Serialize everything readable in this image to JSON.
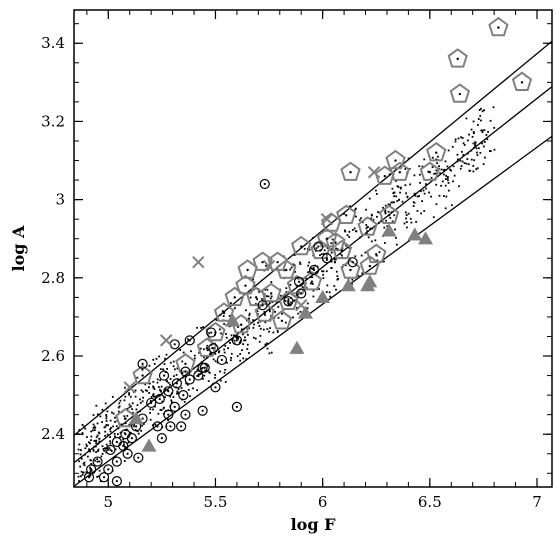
{
  "chart_data": {
    "type": "scatter",
    "title": "",
    "xlabel": "log F",
    "ylabel": "log A",
    "xlim": [
      4.84,
      7.07
    ],
    "ylim": [
      2.265,
      3.485
    ],
    "xticks": [
      5,
      5.5,
      6,
      6.5,
      7
    ],
    "xtick_labels": [
      "5",
      "5.5",
      "6",
      "6.5",
      "7"
    ],
    "yticks": [
      2.4,
      2.6,
      2.8,
      3,
      3.2,
      3.4
    ],
    "ytick_labels": [
      "2.4",
      "2.6",
      "2.8",
      "3",
      "3.2",
      "3.4"
    ],
    "grid": false,
    "legend": "none",
    "colors": {
      "gray": "#808080",
      "black": "#000000"
    },
    "lines": [
      {
        "x": [
          4.84,
          7.07
        ],
        "y": [
          2.397,
          3.405
        ]
      },
      {
        "x": [
          4.84,
          7.07
        ],
        "y": [
          2.327,
          3.289
        ]
      },
      {
        "x": [
          4.84,
          7.07
        ],
        "y": [
          2.267,
          3.162
        ]
      }
    ],
    "series": [
      {
        "marker": "pentagon",
        "points": [
          [
            6.82,
            3.44
          ],
          [
            6.63,
            3.36
          ],
          [
            6.64,
            3.27
          ],
          [
            6.93,
            3.3
          ],
          [
            6.53,
            3.12
          ],
          [
            6.34,
            3.1
          ],
          [
            6.29,
            3.06
          ],
          [
            6.36,
            3.07
          ],
          [
            6.13,
            3.07
          ],
          [
            6.5,
            3.07
          ],
          [
            6.31,
            2.96
          ],
          [
            6.11,
            2.96
          ],
          [
            6.21,
            2.93
          ],
          [
            6.04,
            2.94
          ],
          [
            6.06,
            2.89
          ],
          [
            6.02,
            2.9
          ],
          [
            5.99,
            2.87
          ],
          [
            6.09,
            2.87
          ],
          [
            5.9,
            2.88
          ],
          [
            5.72,
            2.84
          ],
          [
            5.79,
            2.84
          ],
          [
            5.65,
            2.82
          ],
          [
            5.83,
            2.82
          ],
          [
            5.95,
            2.79
          ],
          [
            5.88,
            2.78
          ],
          [
            5.84,
            2.74
          ],
          [
            5.76,
            2.76
          ],
          [
            5.69,
            2.75
          ],
          [
            5.64,
            2.78
          ],
          [
            5.59,
            2.75
          ],
          [
            5.54,
            2.71
          ],
          [
            5.73,
            2.71
          ],
          [
            5.81,
            2.69
          ],
          [
            5.62,
            2.68
          ],
          [
            5.5,
            2.66
          ],
          [
            5.46,
            2.62
          ],
          [
            5.36,
            2.58
          ],
          [
            5.16,
            2.55
          ],
          [
            5.08,
            2.44
          ],
          [
            6.13,
            2.82
          ],
          [
            6.22,
            2.83
          ],
          [
            6.25,
            2.86
          ]
        ]
      },
      {
        "marker": "dotted-circle",
        "points": [
          [
            5.73,
            3.04
          ],
          [
            5.96,
            2.82
          ],
          [
            5.89,
            2.79
          ],
          [
            5.9,
            2.76
          ],
          [
            5.98,
            2.88
          ],
          [
            6.02,
            2.85
          ],
          [
            5.84,
            2.74
          ],
          [
            5.72,
            2.73
          ],
          [
            5.48,
            2.66
          ],
          [
            5.6,
            2.64
          ],
          [
            5.38,
            2.64
          ],
          [
            5.31,
            2.63
          ],
          [
            5.49,
            2.62
          ],
          [
            5.53,
            2.59
          ],
          [
            5.44,
            2.57
          ],
          [
            5.36,
            2.56
          ],
          [
            5.26,
            2.55
          ],
          [
            5.42,
            2.55
          ],
          [
            5.38,
            2.54
          ],
          [
            5.5,
            2.52
          ],
          [
            5.32,
            2.53
          ],
          [
            5.16,
            2.58
          ],
          [
            5.28,
            2.51
          ],
          [
            5.35,
            2.5
          ],
          [
            5.24,
            2.49
          ],
          [
            5.2,
            2.48
          ],
          [
            5.31,
            2.47
          ],
          [
            5.44,
            2.46
          ],
          [
            5.36,
            2.45
          ],
          [
            5.28,
            2.45
          ],
          [
            5.16,
            2.44
          ],
          [
            5.13,
            2.42
          ],
          [
            5.08,
            2.4
          ],
          [
            5.23,
            2.42
          ],
          [
            5.29,
            2.42
          ],
          [
            5.11,
            2.39
          ],
          [
            5.04,
            2.38
          ],
          [
            5.25,
            2.39
          ],
          [
            5.07,
            2.37
          ],
          [
            5.01,
            2.36
          ],
          [
            5.09,
            2.35
          ],
          [
            4.95,
            2.33
          ],
          [
            5.04,
            2.33
          ],
          [
            5.0,
            2.31
          ],
          [
            4.92,
            2.31
          ],
          [
            4.98,
            2.29
          ],
          [
            4.91,
            2.29
          ],
          [
            5.04,
            2.28
          ],
          [
            5.14,
            2.34
          ],
          [
            5.6,
            2.47
          ],
          [
            5.34,
            2.42
          ],
          [
            5.45,
            2.57
          ],
          [
            6.14,
            2.84
          ]
        ]
      },
      {
        "marker": "triangle",
        "points": [
          [
            6.43,
            2.91
          ],
          [
            6.31,
            2.92
          ],
          [
            6.48,
            2.9
          ],
          [
            6.21,
            2.78
          ],
          [
            6.12,
            2.78
          ],
          [
            6.22,
            2.79
          ],
          [
            6.0,
            2.75
          ],
          [
            5.92,
            2.71
          ],
          [
            5.88,
            2.62
          ],
          [
            5.58,
            2.69
          ],
          [
            5.13,
            2.44
          ],
          [
            5.19,
            2.37
          ]
        ]
      },
      {
        "marker": "cross",
        "points": [
          [
            6.02,
            2.95
          ],
          [
            5.75,
            2.83
          ],
          [
            5.42,
            2.84
          ],
          [
            6.24,
            3.07
          ],
          [
            5.9,
            2.73
          ],
          [
            5.27,
            2.64
          ],
          [
            5.1,
            2.52
          ]
        ]
      }
    ]
  }
}
